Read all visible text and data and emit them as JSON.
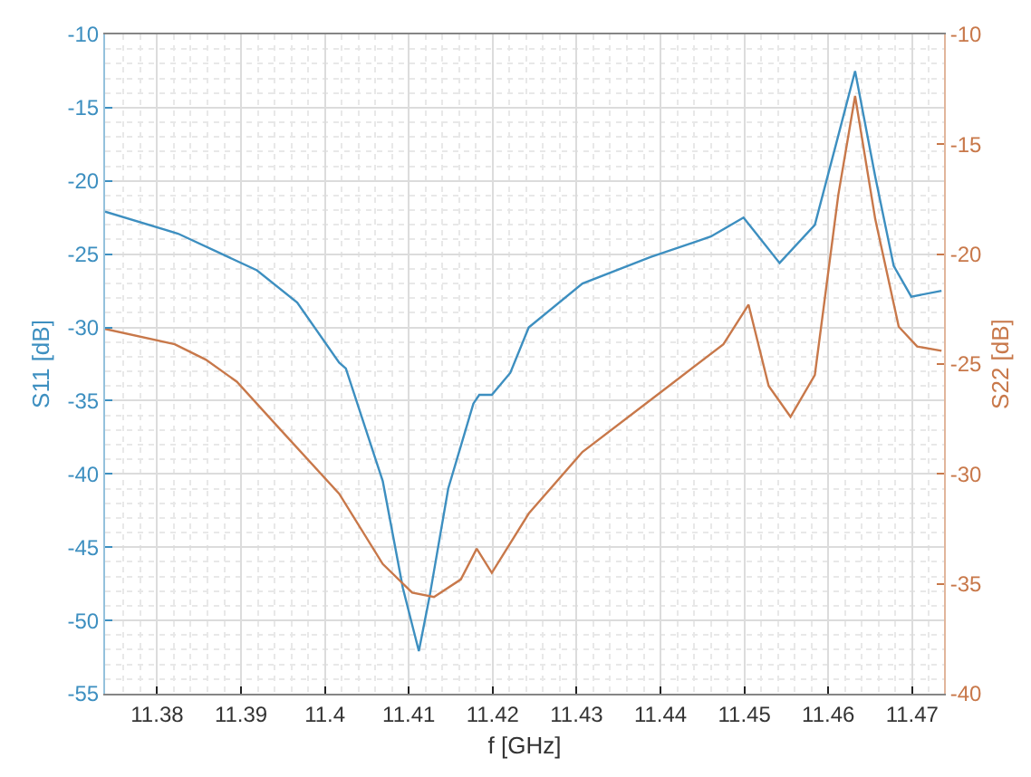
{
  "chart_data": {
    "type": "line",
    "xlabel": "f [GHz]",
    "ylabel": "S11 [dB]",
    "y2label": "S22 [dB]",
    "xlim": [
      11.3738,
      11.4738
    ],
    "xticks": [
      11.38,
      11.39,
      11.4,
      11.41,
      11.42,
      11.43,
      11.44,
      11.45,
      11.46,
      11.47
    ],
    "ylim": [
      -55,
      -10
    ],
    "yticks": [
      -55,
      -50,
      -45,
      -40,
      -35,
      -30,
      -25,
      -20,
      -15,
      -10
    ],
    "y2lim": [
      -40,
      -10
    ],
    "y2ticks": [
      -40,
      -35,
      -30,
      -25,
      -20,
      -15,
      -10
    ],
    "grid": true,
    "marker": "none",
    "line_style": "solid",
    "series": [
      {
        "color": "#3d8fc0",
        "x": [
          11.3738,
          11.3825,
          11.3919,
          11.3967,
          11.4017,
          11.4025,
          11.4069,
          11.4093,
          11.4112,
          11.4125,
          11.4147,
          11.4177,
          11.4184,
          11.4199,
          11.4221,
          11.4243,
          11.4307,
          11.4388,
          11.446,
          11.4499,
          11.4542,
          11.4584,
          11.4612,
          11.4632,
          11.4656,
          11.4678,
          11.4699,
          11.4735
        ],
        "values": [
          -22.1,
          -23.6,
          -26.1,
          -28.3,
          -32.4,
          -32.8,
          -40.5,
          -47.8,
          -52.1,
          -48.3,
          -41.0,
          -35.2,
          -34.6,
          -34.6,
          -33.1,
          -30.0,
          -27.0,
          -25.2,
          -23.8,
          -22.5,
          -25.6,
          -23.0,
          -16.9,
          -12.5,
          -19.7,
          -25.8,
          -27.9,
          -27.5
        ]
      },
      {
        "color": "#c8784a",
        "axis": "y2",
        "x": [
          11.3738,
          11.3821,
          11.3858,
          11.3895,
          11.3945,
          11.4017,
          11.4069,
          11.4104,
          11.413,
          11.4162,
          11.4181,
          11.4199,
          11.4243,
          11.4307,
          11.441,
          11.4475,
          11.4505,
          11.4529,
          11.4555,
          11.4584,
          11.4612,
          11.4632,
          11.4656,
          11.4684,
          11.4706,
          11.4735
        ],
        "values": [
          -23.4,
          -24.1,
          -24.8,
          -25.8,
          -27.9,
          -30.9,
          -34.1,
          -35.4,
          -35.6,
          -34.8,
          -33.4,
          -34.5,
          -31.8,
          -29.0,
          -26.0,
          -24.1,
          -22.3,
          -26.0,
          -27.4,
          -25.5,
          -17.3,
          -12.8,
          -18.4,
          -23.3,
          -24.2,
          -24.4
        ]
      }
    ]
  }
}
